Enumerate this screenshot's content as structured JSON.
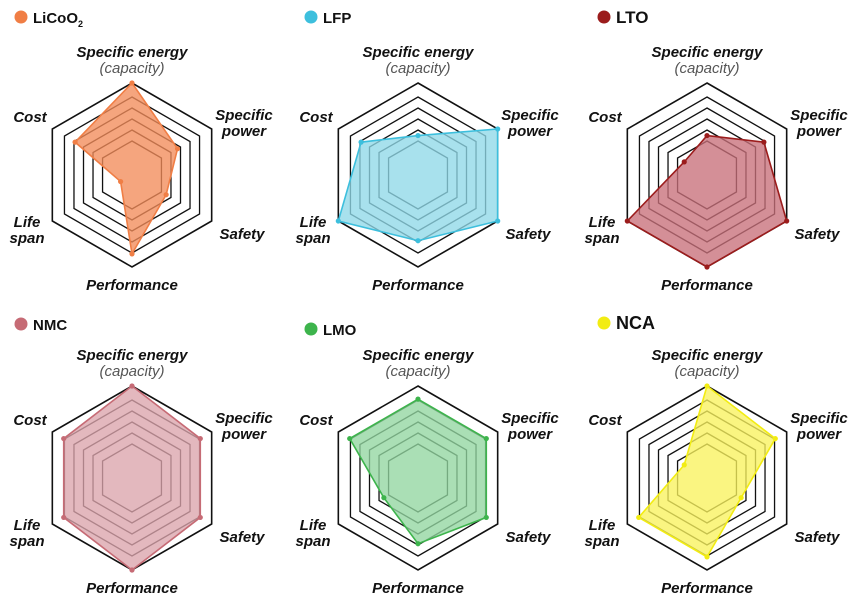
{
  "chart_data": [
    {
      "type": "radar",
      "name": "LiCoO",
      "name_sub": "2",
      "color": "#F28C5A",
      "point_color": "#F07E45",
      "axes": [
        "Specific energy",
        "Specific power",
        "Safety",
        "Performance",
        "Life span",
        "Cost"
      ],
      "axis_sub": "(capacity)",
      "rlim": [
        0,
        7
      ],
      "values": [
        7,
        4,
        3,
        6,
        1,
        5
      ]
    },
    {
      "type": "radar",
      "name": "LFP",
      "color": "#8FD8E8",
      "point_color": "#3DBFDD",
      "axes": [
        "Specific energy",
        "Specific power",
        "Safety",
        "Performance",
        "Life span",
        "Cost"
      ],
      "axis_sub": "(capacity)",
      "rlim": [
        0,
        7
      ],
      "values": [
        3,
        7,
        7,
        5,
        7,
        5
      ]
    },
    {
      "type": "radar",
      "name": "LTO",
      "color": "#C8707A",
      "point_color": "#9B1C1C",
      "axes": [
        "Specific energy",
        "Specific power",
        "Safety",
        "Performance",
        "Life span",
        "Cost"
      ],
      "axis_sub": "(capacity)",
      "rlim": [
        0,
        7
      ],
      "values": [
        3,
        5,
        7,
        7,
        7,
        2
      ]
    },
    {
      "type": "radar",
      "name": "NMC",
      "color": "#DBA4AC",
      "point_color": "#C66B75",
      "axes": [
        "Specific energy",
        "Specific power",
        "Safety",
        "Performance",
        "Life span",
        "Cost"
      ],
      "axis_sub": "(capacity)",
      "rlim": [
        0,
        7
      ],
      "values": [
        7,
        6,
        6,
        7,
        6,
        6
      ]
    },
    {
      "type": "radar",
      "name": "LMO",
      "color": "#92D6A0",
      "point_color": "#3DB44C",
      "axes": [
        "Specific energy",
        "Specific power",
        "Safety",
        "Performance",
        "Life span",
        "Cost"
      ],
      "axis_sub": "(capacity)",
      "rlim": [
        0,
        7
      ],
      "values": [
        6,
        6,
        6,
        5,
        3,
        6
      ]
    },
    {
      "type": "radar",
      "name": "NCA",
      "color": "#F8F25E",
      "point_color": "#F2EC12",
      "axes": [
        "Specific energy",
        "Specific power",
        "Safety",
        "Performance",
        "Life span",
        "Cost"
      ],
      "axis_sub": "(capacity)",
      "rlim": [
        0,
        7
      ],
      "values": [
        7,
        6,
        3,
        6,
        6,
        2
      ]
    }
  ]
}
